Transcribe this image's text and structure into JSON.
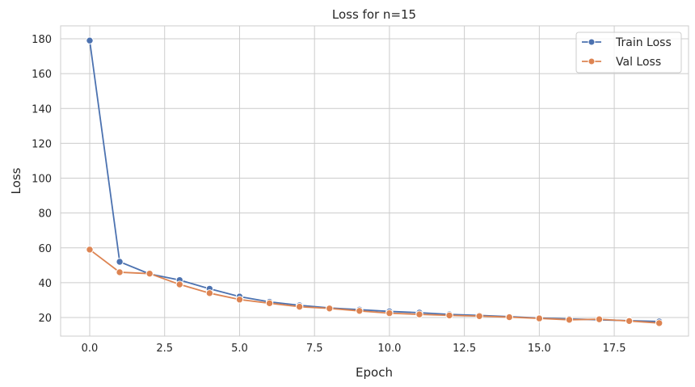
{
  "chart_data": {
    "type": "line",
    "title": "Loss for n=15",
    "xlabel": "Epoch",
    "ylabel": "Loss",
    "xlim": [
      -1,
      20
    ],
    "ylim": [
      8.5,
      188
    ],
    "xticks": [
      0.0,
      2.5,
      5.0,
      7.5,
      10.0,
      12.5,
      15.0,
      17.5
    ],
    "xtick_labels": [
      "0.0",
      "2.5",
      "5.0",
      "7.5",
      "10.0",
      "12.5",
      "15.0",
      "17.5"
    ],
    "yticks": [
      20,
      40,
      60,
      80,
      100,
      120,
      140,
      160,
      180
    ],
    "ytick_labels": [
      "20",
      "40",
      "60",
      "80",
      "100",
      "120",
      "140",
      "160",
      "180"
    ],
    "grid": true,
    "legend_position": "top-right",
    "x": [
      0,
      1,
      2,
      3,
      4,
      5,
      6,
      7,
      8,
      9,
      10,
      11,
      12,
      13,
      14,
      15,
      16,
      17,
      18,
      19
    ],
    "series": [
      {
        "name": "Train Loss",
        "color": "#4c72b0",
        "values": [
          179,
          52,
          45,
          41.5,
          36.5,
          32,
          29,
          27,
          25.5,
          24.5,
          23.5,
          22.8,
          21.8,
          21.2,
          20.5,
          19.7,
          19.2,
          18.7,
          18.2,
          17.7
        ]
      },
      {
        "name": "Val Loss",
        "color": "#dd8452",
        "values": [
          59,
          46,
          45.2,
          39,
          34,
          30.3,
          28.2,
          26.2,
          25.2,
          23.8,
          22.5,
          21.8,
          21.2,
          20.8,
          20.2,
          19.5,
          18.7,
          19,
          18,
          16.8
        ]
      }
    ]
  }
}
